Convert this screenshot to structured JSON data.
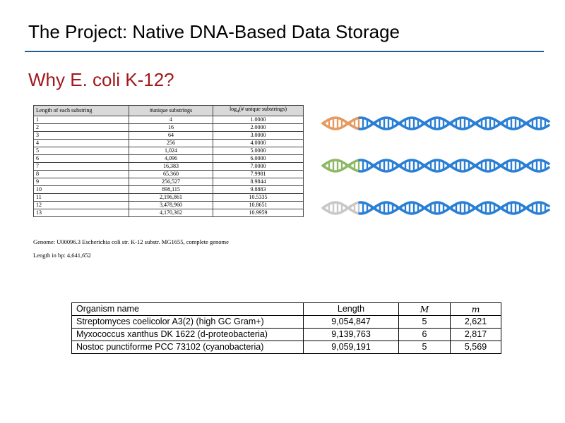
{
  "slide": {
    "title": "The Project: Native DNA-Based Data Storage",
    "subtitle": "Why E. coli K-12?"
  },
  "substring_table": {
    "headers": [
      "Length of each substring",
      "#unique substrings",
      "log4(# unique substrings)"
    ],
    "header_log_prefix": "log",
    "header_log_sub": "4",
    "header_log_suffix": "(# unique substrings)",
    "rows": [
      [
        "1",
        "4",
        "1.0000"
      ],
      [
        "2",
        "16",
        "2.0000"
      ],
      [
        "3",
        "64",
        "3.0000"
      ],
      [
        "4",
        "256",
        "4.0000"
      ],
      [
        "5",
        "1,024",
        "5.0000"
      ],
      [
        "6",
        "4,096",
        "6.0000"
      ],
      [
        "7",
        "16,383",
        "7.0000"
      ],
      [
        "8",
        "65,360",
        "7.9981"
      ],
      [
        "9",
        "256,527",
        "8.9844"
      ],
      [
        "10",
        "898,115",
        "9.8883"
      ],
      [
        "11",
        "2,196,861",
        "10.5335"
      ],
      [
        "12",
        "3,478,960",
        "10.8651"
      ],
      [
        "13",
        "4,170,362",
        "10.9959"
      ]
    ]
  },
  "notes": {
    "genome": "Genome: U00096.3 Escherichia coli str. K-12 substr. MG1655, complete genome",
    "length": "Length in bp: 4,641,652"
  },
  "organism_table": {
    "headers": [
      "Organism name",
      "Length",
      "M",
      "m"
    ],
    "rows": [
      [
        "Streptomyces coelicolor A3(2) (high GC Gram+)",
        "9,054,847",
        "5",
        "2,621"
      ],
      [
        "Myxococcus xanthus DK 1622 (d-proteobacteria)",
        "9,139,763",
        "6",
        "2,817"
      ],
      [
        "Nostoc punctiforme PCC 73102 (cyanobacteria)",
        "9,059,191",
        "5",
        "5,569"
      ]
    ]
  },
  "colors": {
    "title_rule": "#1f5c99",
    "subtitle": "#a0181c",
    "dna_blue": "#2a7fd4",
    "dna_orange": "#e59a62",
    "dna_green": "#8fb866",
    "dna_gray": "#c8c8c8"
  },
  "dna_helix_tints": [
    "dna_orange",
    "dna_green",
    "dna_gray"
  ]
}
